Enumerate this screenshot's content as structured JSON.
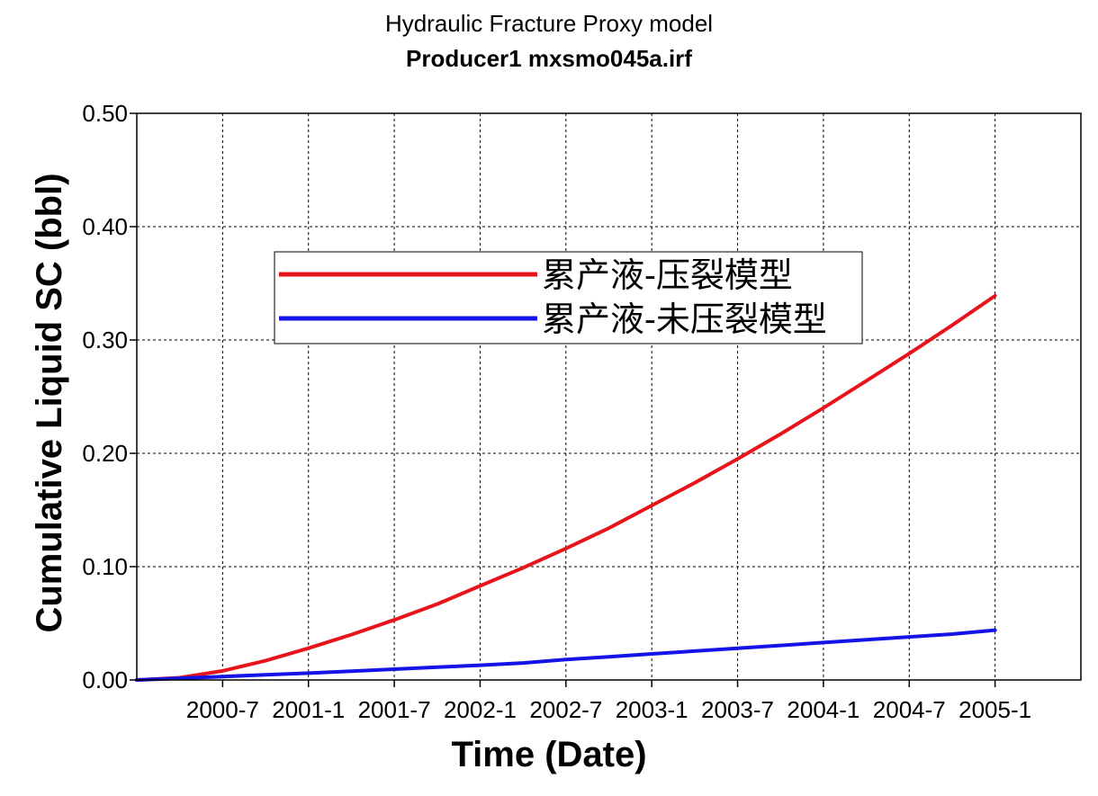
{
  "chart_data": {
    "type": "line",
    "title": "Hydraulic Fracture Proxy model",
    "subtitle": "Producer1 mxsmo045a.irf",
    "xlabel": "Time (Date)",
    "ylabel": "Cumulative Liquid SC (bbl)",
    "x_ticks": [
      "2000-7",
      "2001-1",
      "2001-7",
      "2002-1",
      "2002-7",
      "2003-1",
      "2003-7",
      "2004-1",
      "2004-7",
      "2005-1"
    ],
    "xlim": [
      "2000-1",
      "2005-7"
    ],
    "ylim": [
      0,
      0.5
    ],
    "y_ticks": [
      "0.00",
      "0.10",
      "0.20",
      "0.30",
      "0.40",
      "0.50"
    ],
    "grid": true,
    "legend_position": "center",
    "series": [
      {
        "name": "累产液-压裂模型",
        "color": "#e8141c",
        "points": [
          [
            "2000-1",
            0.0
          ],
          [
            "2000-4",
            0.002
          ],
          [
            "2000-7",
            0.008
          ],
          [
            "2000-10",
            0.017
          ],
          [
            "2001-1",
            0.028
          ],
          [
            "2001-4",
            0.04
          ],
          [
            "2001-7",
            0.053
          ],
          [
            "2001-10",
            0.067
          ],
          [
            "2002-1",
            0.083
          ],
          [
            "2002-4",
            0.099
          ],
          [
            "2002-7",
            0.116
          ],
          [
            "2002-10",
            0.134
          ],
          [
            "2003-1",
            0.154
          ],
          [
            "2003-4",
            0.174
          ],
          [
            "2003-7",
            0.195
          ],
          [
            "2003-10",
            0.217
          ],
          [
            "2004-1",
            0.24
          ],
          [
            "2004-4",
            0.264
          ],
          [
            "2004-7",
            0.288
          ],
          [
            "2004-10",
            0.313
          ],
          [
            "2005-1",
            0.339
          ]
        ]
      },
      {
        "name": "累产液-未压裂模型",
        "color": "#1414e8",
        "points": [
          [
            "2000-1",
            0.0
          ],
          [
            "2000-4",
            0.0015
          ],
          [
            "2000-7",
            0.003
          ],
          [
            "2000-10",
            0.0045
          ],
          [
            "2001-1",
            0.006
          ],
          [
            "2001-4",
            0.0078
          ],
          [
            "2001-7",
            0.0095
          ],
          [
            "2001-10",
            0.0113
          ],
          [
            "2002-1",
            0.013
          ],
          [
            "2002-4",
            0.015
          ],
          [
            "2002-7",
            0.018
          ],
          [
            "2002-10",
            0.0205
          ],
          [
            "2003-1",
            0.023
          ],
          [
            "2003-4",
            0.0255
          ],
          [
            "2003-7",
            0.028
          ],
          [
            "2003-10",
            0.0305
          ],
          [
            "2004-1",
            0.033
          ],
          [
            "2004-4",
            0.0355
          ],
          [
            "2004-7",
            0.038
          ],
          [
            "2004-10",
            0.0405
          ],
          [
            "2005-1",
            0.044
          ]
        ]
      }
    ]
  }
}
